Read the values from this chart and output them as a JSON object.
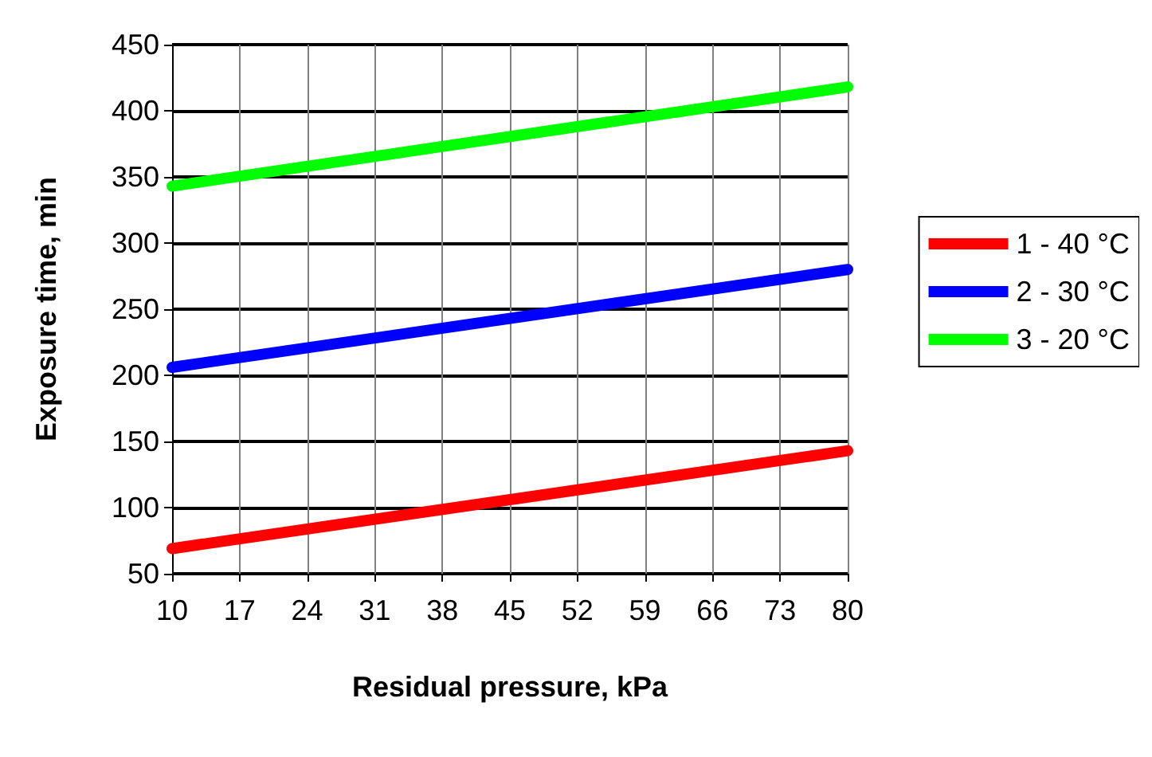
{
  "chart_data": {
    "type": "line",
    "xlabel": "Residual pressure, kPa",
    "ylabel": "Exposure time, min",
    "x": [
      10,
      80
    ],
    "series": [
      {
        "name": "1 - 40 °C",
        "color": "#ff0000",
        "values": [
          69,
          143
        ]
      },
      {
        "name": "2 - 30 °C",
        "color": "#0000ff",
        "values": [
          206,
          280
        ]
      },
      {
        "name": "3 - 20 °C",
        "color": "#00ff00",
        "values": [
          343,
          418
        ]
      }
    ],
    "xlim": [
      10,
      80
    ],
    "xticks": [
      10,
      17,
      24,
      31,
      38,
      45,
      52,
      59,
      66,
      73,
      80
    ],
    "ylim": [
      50,
      450
    ],
    "yticks": [
      50,
      100,
      150,
      200,
      250,
      300,
      350,
      400,
      450
    ],
    "grid": true,
    "legend": "right",
    "line_style": "solid"
  }
}
